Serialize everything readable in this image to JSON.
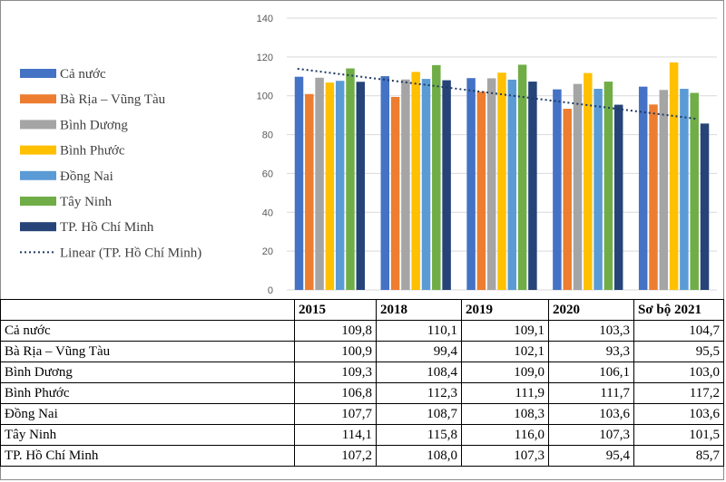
{
  "chart_data": {
    "type": "bar",
    "categories": [
      "2015",
      "2018",
      "2019",
      "2020",
      "Sơ bộ 2021"
    ],
    "ylim": [
      0,
      140
    ],
    "yticks": [
      0,
      20,
      40,
      60,
      80,
      100,
      120,
      140
    ],
    "grid": true,
    "legend_position": "left",
    "series": [
      {
        "name": "Cả nước",
        "color": "#4472C4",
        "values": [
          109.8,
          110.1,
          109.1,
          103.3,
          104.7
        ]
      },
      {
        "name": "Bà Rịa – Vũng Tàu",
        "color": "#ED7D31",
        "values": [
          100.9,
          99.4,
          102.1,
          93.3,
          95.5
        ]
      },
      {
        "name": "Bình Dương",
        "color": "#A5A5A5",
        "values": [
          109.3,
          108.4,
          109.0,
          106.1,
          103.0
        ]
      },
      {
        "name": "Bình Phước",
        "color": "#FFC000",
        "values": [
          106.8,
          112.3,
          111.9,
          111.7,
          117.2
        ]
      },
      {
        "name": "Đồng Nai",
        "color": "#5B9BD5",
        "values": [
          107.7,
          108.7,
          108.3,
          103.6,
          103.6
        ]
      },
      {
        "name": "Tây Ninh",
        "color": "#70AD47",
        "values": [
          114.1,
          115.8,
          116.0,
          107.3,
          101.5
        ]
      },
      {
        "name": "TP. Hồ Chí Minh",
        "color": "#264478",
        "values": [
          107.2,
          108.0,
          107.3,
          95.4,
          85.7
        ]
      }
    ],
    "trendline": {
      "name": "Linear (TP. Hồ Chí Minh)",
      "series": "TP. Hồ Chí Minh",
      "color": "#1F3864",
      "style": "dotted"
    }
  },
  "table": {
    "headers": [
      "",
      "2015",
      "2018",
      "2019",
      "2020",
      "Sơ bộ 2021"
    ],
    "rows": [
      [
        "Cả nước",
        "109,8",
        "110,1",
        "109,1",
        "103,3",
        "104,7"
      ],
      [
        "Bà Rịa – Vũng Tàu",
        "100,9",
        "99,4",
        "102,1",
        "93,3",
        "95,5"
      ],
      [
        "Bình Dương",
        "109,3",
        "108,4",
        "109,0",
        "106,1",
        "103,0"
      ],
      [
        "Bình Phước",
        "106,8",
        "112,3",
        "111,9",
        "111,7",
        "117,2"
      ],
      [
        "Đồng Nai",
        "107,7",
        "108,7",
        "108,3",
        "103,6",
        "103,6"
      ],
      [
        "Tây Ninh",
        "114,1",
        "115,8",
        "116,0",
        "107,3",
        "101,5"
      ],
      [
        "TP. Hồ Chí Minh",
        "107,2",
        "108,0",
        "107,3",
        "95,4",
        "85,7"
      ]
    ]
  }
}
